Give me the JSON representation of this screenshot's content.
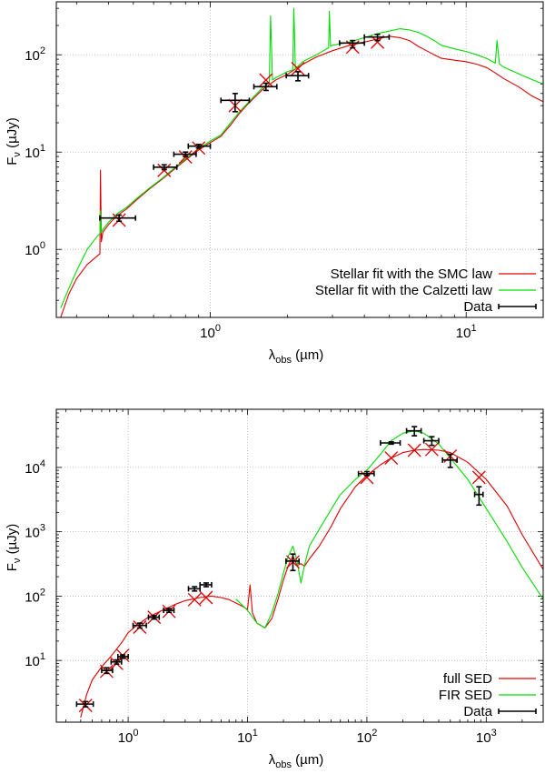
{
  "chart_data": [
    {
      "type": "line",
      "title": "",
      "xlabel": "λ_obs (µm)",
      "ylabel": "F_ν (µJy)",
      "xscale": "log",
      "yscale": "log",
      "xlim": [
        0.25,
        20
      ],
      "ylim": [
        0.2,
        350
      ],
      "grid": true,
      "legend_position": "bottom-right",
      "x_ticks": [
        {
          "value": 1,
          "base": "10",
          "exp": "0"
        },
        {
          "value": 10,
          "base": "10",
          "exp": "1"
        }
      ],
      "y_ticks": [
        {
          "value": 1,
          "base": "10",
          "exp": "0"
        },
        {
          "value": 10,
          "base": "10",
          "exp": "1"
        },
        {
          "value": 100,
          "base": "10",
          "exp": "2"
        }
      ],
      "series": [
        {
          "name": "Stellar fit with the SMC law",
          "color": "#dd0000",
          "x": [
            0.26,
            0.28,
            0.3,
            0.33,
            0.36,
            0.37,
            0.372,
            0.375,
            0.38,
            0.4,
            0.43,
            0.47,
            0.52,
            0.58,
            0.65,
            0.72,
            0.8,
            0.9,
            1.0,
            1.1,
            1.2,
            1.3,
            1.4,
            1.6,
            1.8,
            2.0,
            2.3,
            2.6,
            3.0,
            3.5,
            4.0,
            4.5,
            5.0,
            5.5,
            6.0,
            6.5,
            7.0,
            7.5,
            8.0,
            9.0,
            10.0,
            11.0,
            12.0,
            13.0,
            14.0,
            16.0,
            18.0,
            20.0
          ],
          "y": [
            0.2,
            0.35,
            0.5,
            0.7,
            0.85,
            0.9,
            6.5,
            1.2,
            1.5,
            1.8,
            2.2,
            2.6,
            3.3,
            4.2,
            5.3,
            6.6,
            8.3,
            10.5,
            12.5,
            14.5,
            19,
            25,
            31,
            44,
            55,
            63,
            80,
            95,
            110,
            125,
            135,
            145,
            155,
            150,
            140,
            122,
            110,
            100,
            92,
            88,
            85,
            80,
            74,
            65,
            57,
            47,
            38,
            33
          ]
        },
        {
          "name": "Stellar fit with the Calzetti law",
          "color": "#00dd00",
          "x": [
            0.26,
            0.28,
            0.3,
            0.33,
            0.36,
            0.37,
            0.372,
            0.375,
            0.38,
            0.4,
            0.43,
            0.47,
            0.52,
            0.58,
            0.65,
            0.72,
            0.8,
            0.9,
            1.0,
            1.1,
            1.2,
            1.3,
            1.4,
            1.6,
            1.7,
            1.72,
            1.75,
            1.8,
            2.0,
            2.1,
            2.12,
            2.15,
            2.3,
            2.6,
            2.9,
            2.92,
            2.95,
            3.0,
            3.5,
            4.0,
            4.5,
            5.0,
            5.5,
            6.0,
            6.5,
            7.0,
            7.5,
            8.0,
            9.0,
            10.0,
            11.0,
            12.0,
            13.0,
            13.2,
            13.5,
            14.0,
            16.0,
            18.0,
            20.0
          ],
          "y": [
            0.25,
            0.4,
            0.6,
            1.0,
            1.35,
            1.45,
            2.5,
            1.5,
            1.6,
            1.9,
            2.3,
            2.7,
            3.4,
            4.3,
            5.4,
            6.8,
            8.5,
            10.8,
            13,
            15,
            20,
            26,
            32,
            46,
            52,
            250,
            55,
            58,
            67,
            70,
            300,
            72,
            85,
            100,
            118,
            280,
            122,
            125,
            135,
            150,
            165,
            175,
            185,
            180,
            170,
            155,
            140,
            125,
            115,
            108,
            100,
            92,
            82,
            140,
            80,
            75,
            64,
            56,
            50
          ]
        }
      ],
      "data_points": {
        "name": "Data",
        "color": "#000000",
        "points": [
          {
            "x": 0.44,
            "y": 2.1,
            "xerr": [
              0.37,
              0.51
            ],
            "yerr": [
              1.95,
              2.25
            ]
          },
          {
            "x": 0.66,
            "y": 7.0,
            "xerr": [
              0.6,
              0.74
            ],
            "yerr": [
              6.6,
              7.4
            ]
          },
          {
            "x": 0.8,
            "y": 9.5,
            "xerr": [
              0.72,
              0.88
            ],
            "yerr": [
              9.0,
              10.0
            ]
          },
          {
            "x": 0.9,
            "y": 11.5,
            "xerr": [
              0.82,
              1.0
            ],
            "yerr": [
              11.0,
              12.0
            ]
          },
          {
            "x": 1.25,
            "y": 34,
            "xerr": [
              1.1,
              1.42
            ],
            "yerr": [
              26,
              40
            ]
          },
          {
            "x": 1.65,
            "y": 47,
            "xerr": [
              1.48,
              1.82
            ],
            "yerr": [
              43,
              51
            ]
          },
          {
            "x": 2.2,
            "y": 61,
            "xerr": [
              1.98,
              2.42
            ],
            "yerr": [
              54,
              67
            ]
          },
          {
            "x": 3.6,
            "y": 132,
            "xerr": [
              3.2,
              4.0
            ],
            "yerr": [
              118,
              140
            ]
          },
          {
            "x": 4.5,
            "y": 152,
            "xerr": [
              4.0,
              5.0
            ],
            "yerr": [
              140,
              162
            ]
          }
        ]
      },
      "model_marks": {
        "color": "#dd0000",
        "points": [
          {
            "x": 0.44,
            "y": 2.0
          },
          {
            "x": 0.66,
            "y": 6.5
          },
          {
            "x": 0.8,
            "y": 8.9
          },
          {
            "x": 0.9,
            "y": 11
          },
          {
            "x": 1.25,
            "y": 30
          },
          {
            "x": 1.65,
            "y": 55
          },
          {
            "x": 2.2,
            "y": 72
          },
          {
            "x": 3.6,
            "y": 120
          },
          {
            "x": 4.5,
            "y": 135
          }
        ]
      }
    },
    {
      "type": "line",
      "title": "",
      "xlabel": "λ_obs (µm)",
      "ylabel": "F_ν (µJy)",
      "xscale": "log",
      "yscale": "log",
      "xlim": [
        0.25,
        3000
      ],
      "ylim": [
        1.1,
        80000
      ],
      "grid": true,
      "legend_position": "bottom-right",
      "x_ticks": [
        {
          "value": 1,
          "base": "10",
          "exp": "0"
        },
        {
          "value": 10,
          "base": "10",
          "exp": "1"
        },
        {
          "value": 100,
          "base": "10",
          "exp": "2"
        },
        {
          "value": 1000,
          "base": "10",
          "exp": "3"
        }
      ],
      "y_ticks": [
        {
          "value": 10,
          "base": "10",
          "exp": "1"
        },
        {
          "value": 100,
          "base": "10",
          "exp": "2"
        },
        {
          "value": 1000,
          "base": "10",
          "exp": "3"
        },
        {
          "value": 10000,
          "base": "10",
          "exp": "4"
        }
      ],
      "series": [
        {
          "name": "full SED",
          "color": "#dd0000",
          "x": [
            0.4,
            0.45,
            0.5,
            0.6,
            0.7,
            0.8,
            0.9,
            1.0,
            1.2,
            1.5,
            2.0,
            2.5,
            3.0,
            3.5,
            4.0,
            5.0,
            6.0,
            7.0,
            8.0,
            9.0,
            10.0,
            10.5,
            11.0,
            12.0,
            14.0,
            16.0,
            18.0,
            20.0,
            22.0,
            24.0,
            26.0,
            28.0,
            30.0,
            33.0,
            40.0,
            50.0,
            60.0,
            80.0,
            100.0,
            130.0,
            160.0,
            200.0,
            250.0,
            300.0,
            400.0,
            500.0,
            700.0,
            1000.0,
            1500.0,
            2000.0,
            3000.0
          ],
          "y": [
            1.3,
            3.0,
            5.0,
            8.0,
            11,
            15,
            20,
            27,
            36,
            48,
            62,
            75,
            85,
            90,
            95,
            100,
            95,
            88,
            78,
            70,
            62,
            150,
            55,
            38,
            32,
            45,
            90,
            180,
            300,
            420,
            300,
            320,
            290,
            380,
            600,
            1200,
            2300,
            5000,
            7500,
            11000,
            14000,
            17000,
            18500,
            19000,
            18500,
            17000,
            12000,
            6500,
            2500,
            900,
            260
          ]
        },
        {
          "name": "FIR SED",
          "color": "#00dd00",
          "x": [
            8.0,
            10.0,
            12.0,
            14.0,
            16.0,
            18.0,
            20.0,
            22.0,
            24.0,
            26.0,
            28.0,
            30.0,
            33.0,
            40.0,
            50.0,
            60.0,
            80.0,
            100.0,
            130.0,
            160.0,
            200.0,
            250.0,
            300.0,
            400.0,
            500.0,
            700.0,
            1000.0,
            1500.0,
            2000.0,
            3000.0
          ],
          "y": [
            90,
            60,
            38,
            32,
            55,
            110,
            230,
            420,
            600,
            350,
            160,
            300,
            600,
            1100,
            2200,
            3800,
            6500,
            9000,
            16000,
            26000,
            34000,
            37000,
            34000,
            23000,
            14000,
            6500,
            2300,
            700,
            280,
            90
          ]
        }
      ],
      "data_points": {
        "name": "Data",
        "color": "#000000",
        "points": [
          {
            "x": 0.44,
            "y": 2.1,
            "xerr": [
              0.37,
              0.51
            ],
            "yerr": [
              1.9,
              2.3
            ]
          },
          {
            "x": 0.66,
            "y": 7.0,
            "xerr": [
              0.6,
              0.74
            ],
            "yerr": [
              6.3,
              7.7
            ]
          },
          {
            "x": 0.8,
            "y": 9.5,
            "xerr": [
              0.72,
              0.88
            ],
            "yerr": [
              8.8,
              10.2
            ]
          },
          {
            "x": 0.9,
            "y": 11.5,
            "xerr": [
              0.82,
              1.0
            ],
            "yerr": [
              10.8,
              12.2
            ]
          },
          {
            "x": 1.25,
            "y": 35,
            "xerr": [
              1.1,
              1.42
            ],
            "yerr": [
              32,
              38
            ]
          },
          {
            "x": 1.65,
            "y": 47,
            "xerr": [
              1.48,
              1.82
            ],
            "yerr": [
              44,
              50
            ]
          },
          {
            "x": 2.2,
            "y": 60,
            "xerr": [
              1.98,
              2.42
            ],
            "yerr": [
              56,
              64
            ]
          },
          {
            "x": 3.6,
            "y": 130,
            "xerr": [
              3.2,
              4.0
            ],
            "yerr": [
              120,
              140
            ]
          },
          {
            "x": 4.5,
            "y": 150,
            "xerr": [
              4.0,
              5.0
            ],
            "yerr": [
              140,
              160
            ]
          },
          {
            "x": 24.0,
            "y": 350,
            "xerr": [
              21.0,
              27.0
            ],
            "yerr": [
              250,
              450
            ]
          },
          {
            "x": 100.0,
            "y": 8000,
            "xerr": [
              85.0,
              115.0
            ],
            "yerr": [
              7500,
              8600
            ]
          },
          {
            "x": 160.0,
            "y": 24000,
            "xerr": [
              130.0,
              190.0
            ],
            "yerr": [
              23000,
              25000
            ]
          },
          {
            "x": 250.0,
            "y": 37000,
            "xerr": [
              215.0,
              285.0
            ],
            "yerr": [
              31000,
              43000
            ]
          },
          {
            "x": 350.0,
            "y": 26000,
            "xerr": [
              300.0,
              400.0
            ],
            "yerr": [
              22000,
              30000
            ]
          },
          {
            "x": 500.0,
            "y": 13000,
            "xerr": [
              430.0,
              570.0
            ],
            "yerr": [
              10000,
              16000
            ]
          },
          {
            "x": 870.0,
            "y": 3800,
            "xerr": [
              800.0,
              940.0
            ],
            "yerr": [
              2600,
              5000
            ]
          }
        ]
      },
      "model_marks": {
        "color": "#dd0000",
        "points": [
          {
            "x": 0.44,
            "y": 2.0
          },
          {
            "x": 0.66,
            "y": 6.8
          },
          {
            "x": 0.8,
            "y": 9.0
          },
          {
            "x": 0.9,
            "y": 12
          },
          {
            "x": 1.25,
            "y": 33
          },
          {
            "x": 1.65,
            "y": 47
          },
          {
            "x": 2.2,
            "y": 58
          },
          {
            "x": 3.6,
            "y": 88
          },
          {
            "x": 4.5,
            "y": 95
          },
          {
            "x": 24.0,
            "y": 340
          },
          {
            "x": 100.0,
            "y": 7000
          },
          {
            "x": 160.0,
            "y": 14000
          },
          {
            "x": 250.0,
            "y": 18500
          },
          {
            "x": 350.0,
            "y": 19000
          },
          {
            "x": 500.0,
            "y": 15000
          },
          {
            "x": 870.0,
            "y": 7000
          }
        ]
      }
    }
  ]
}
